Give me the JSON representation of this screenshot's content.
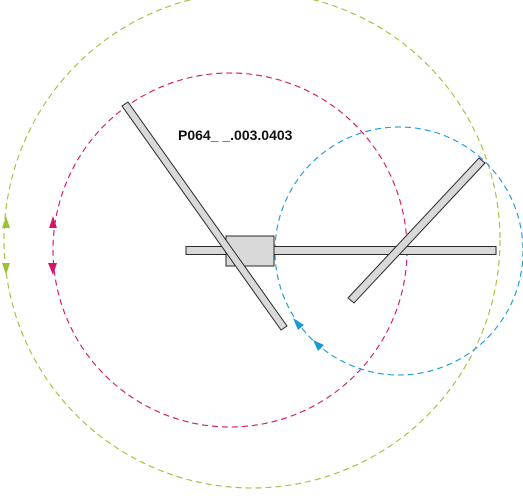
{
  "diagram": {
    "part_code": "P064_ _.003.0403",
    "colors": {
      "green_circle": "#9dc23a",
      "magenta_circle": "#d4156e",
      "cyan_circle": "#1a9bd6",
      "bar_fill": "#d9d9d9",
      "bar_stroke": "#2a2a2a"
    },
    "icons": {
      "green_arrows": "triangle-up/down-icon",
      "magenta_arrows": "triangle-up/down-icon",
      "cyan_arrows": "triangle-arrow-icon"
    }
  }
}
